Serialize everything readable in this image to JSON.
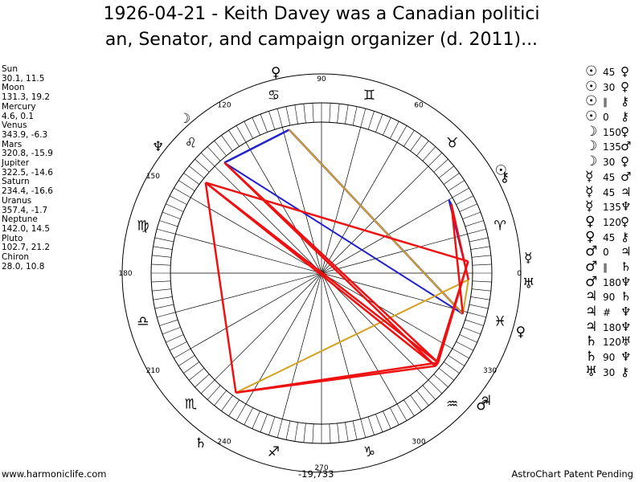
{
  "title_line1": "1926-04-21 - Keith Davey was a Canadian politici",
  "title_line2": "an, Senator, and campaign organizer (d. 2011)...",
  "planets": [
    {
      "name": "Sun",
      "values": "30.1, 11.5"
    },
    {
      "name": "Moon",
      "values": "131.3, 19.2"
    },
    {
      "name": "Mercury",
      "values": "4.6, 0.1"
    },
    {
      "name": "Venus",
      "values": "343.9, -6.3"
    },
    {
      "name": "Mars",
      "values": "320.8, -15.9"
    },
    {
      "name": "Jupiter",
      "values": "322.5, -14.6"
    },
    {
      "name": "Saturn",
      "values": "234.4, -16.6"
    },
    {
      "name": "Uranus",
      "values": "357.4, -1.7"
    },
    {
      "name": "Neptune",
      "values": "142.0, 14.5"
    },
    {
      "name": "Pluto",
      "values": "102.7, 21.2"
    },
    {
      "name": "Chiron",
      "values": "28.0, 10.8"
    }
  ],
  "aspects": [
    {
      "p1": "☉",
      "a": "45",
      "p2": "♀"
    },
    {
      "p1": "☉",
      "a": "30",
      "p2": "♀"
    },
    {
      "p1": "☉",
      "a": "∥",
      "p2": "⚷"
    },
    {
      "p1": "☉",
      "a": "0",
      "p2": "⚷"
    },
    {
      "p1": "☽",
      "a": "150",
      "p2": "♀"
    },
    {
      "p1": "☽",
      "a": "135",
      "p2": "♂"
    },
    {
      "p1": "☽",
      "a": "30",
      "p2": "♀"
    },
    {
      "p1": "☿",
      "a": "45",
      "p2": "♂"
    },
    {
      "p1": "☿",
      "a": "45",
      "p2": "♃"
    },
    {
      "p1": "☿",
      "a": "135",
      "p2": "♆"
    },
    {
      "p1": "♀",
      "a": "120",
      "p2": "♀"
    },
    {
      "p1": "♀",
      "a": "45",
      "p2": "⚷"
    },
    {
      "p1": "♂",
      "a": "0",
      "p2": "♃"
    },
    {
      "p1": "♂",
      "a": "∥",
      "p2": "♄"
    },
    {
      "p1": "♂",
      "a": "180",
      "p2": "♆"
    },
    {
      "p1": "♃",
      "a": "90",
      "p2": "♄"
    },
    {
      "p1": "♃",
      "a": "#",
      "p2": "♆"
    },
    {
      "p1": "♃",
      "a": "180",
      "p2": "♆"
    },
    {
      "p1": "♄",
      "a": "120",
      "p2": "♅"
    },
    {
      "p1": "♄",
      "a": "90",
      "p2": "♆"
    },
    {
      "p1": "♅",
      "a": "30",
      "p2": "⚷"
    }
  ],
  "degree_labels": [
    "90",
    "60",
    "120",
    "150",
    "180",
    "210",
    "240",
    "270",
    "300",
    "330",
    "0"
  ],
  "sign_glyphs": [
    "♈",
    "♉",
    "♊",
    "♋",
    "♌",
    "♍",
    "♎",
    "♏",
    "♐",
    "♑",
    "♒",
    "♓"
  ],
  "chart_planets": [
    {
      "glyph": "☉",
      "lon": 30.1
    },
    {
      "glyph": "☽",
      "lon": 131.3
    },
    {
      "glyph": "☿",
      "lon": 4.6
    },
    {
      "glyph": "♀",
      "lon": 343.9
    },
    {
      "glyph": "♂",
      "lon": 320.8
    },
    {
      "glyph": "♃",
      "lon": 322.5
    },
    {
      "glyph": "♄",
      "lon": 234.4
    },
    {
      "glyph": "♅",
      "lon": 357.4
    },
    {
      "glyph": "♆",
      "lon": 142.0
    },
    {
      "glyph": "♀",
      "lon": 102.7
    },
    {
      "glyph": "⚷",
      "lon": 28.0
    }
  ],
  "colors": {
    "red": "#ee1111",
    "blue": "#2222cc",
    "gold": "#d4a020"
  },
  "footer": {
    "left": "www.harmoniclife.com",
    "center": "-19,733",
    "right": "AstroChart Patent Pending"
  }
}
